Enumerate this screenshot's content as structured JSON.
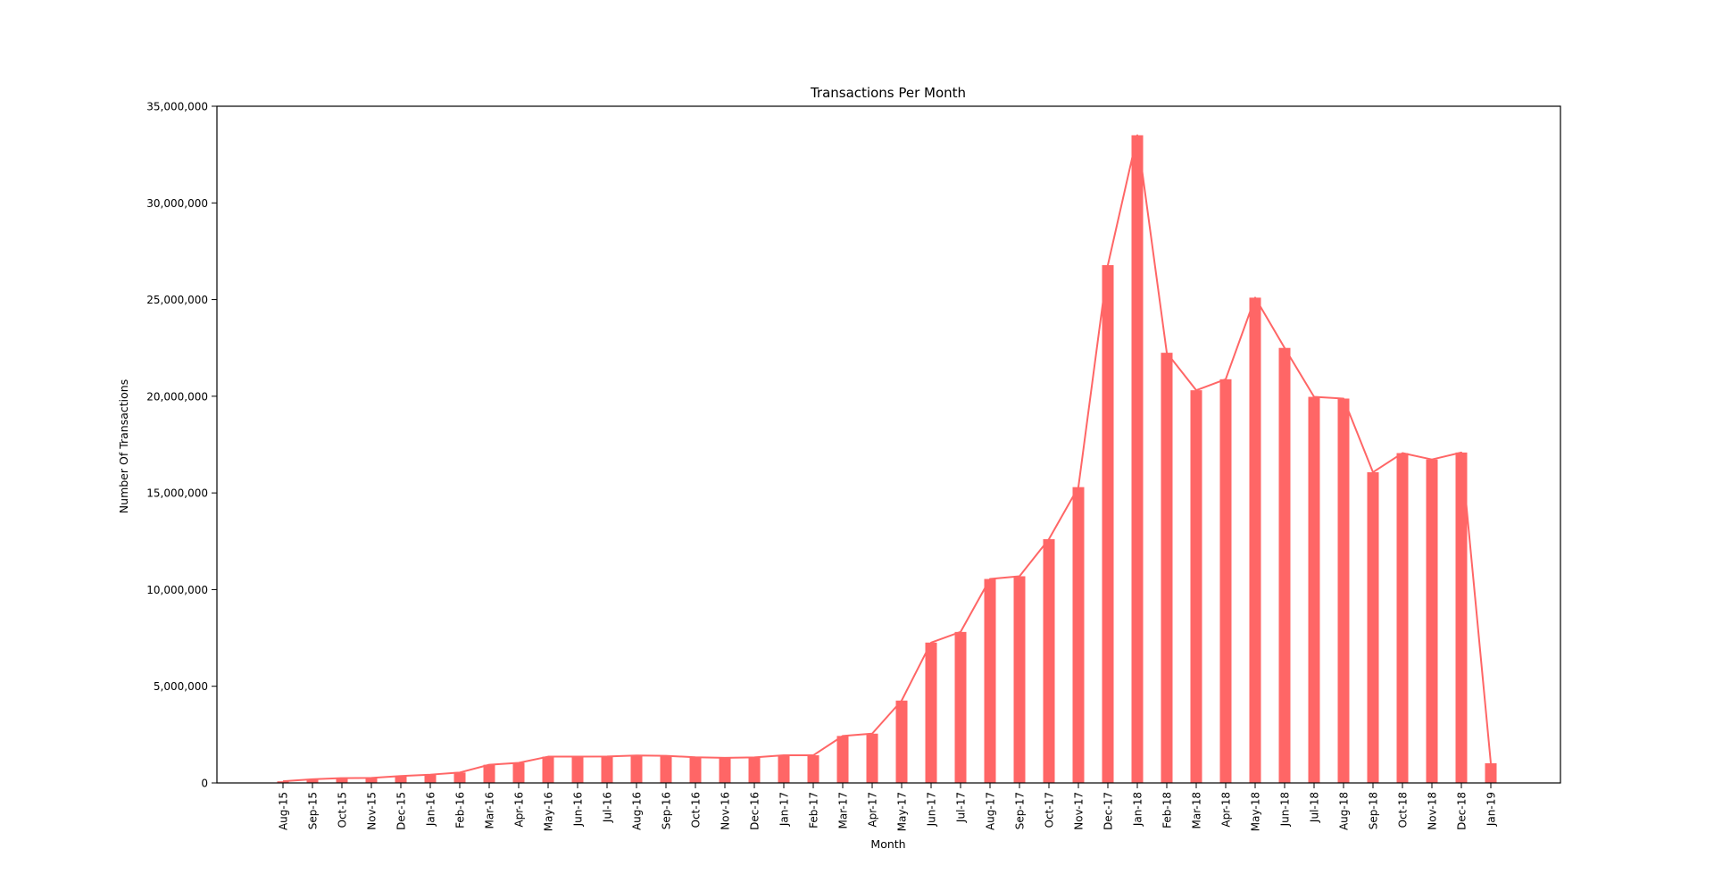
{
  "chart_data": {
    "type": "bar",
    "title": "Transactions Per Month",
    "xlabel": "Month",
    "ylabel": "Number Of Transactions",
    "ylim": [
      0,
      35000000
    ],
    "yticks": [
      0,
      5000000,
      10000000,
      15000000,
      20000000,
      25000000,
      30000000,
      35000000
    ],
    "ytick_labels": [
      "0",
      "5,000,000",
      "10,000,000",
      "15,000,000",
      "20,000,000",
      "25,000,000",
      "30,000,000",
      "35,000,000"
    ],
    "grid": false,
    "overlay": "line",
    "colors": {
      "bar": "#ff6666",
      "line": "#ff6666"
    },
    "categories": [
      "Aug-15",
      "Sep-15",
      "Oct-15",
      "Nov-15",
      "Dec-15",
      "Jan-16",
      "Feb-16",
      "Mar-16",
      "Apr-16",
      "May-16",
      "Jun-16",
      "Jul-16",
      "Aug-16",
      "Sep-16",
      "Oct-16",
      "Nov-16",
      "Dec-16",
      "Jan-17",
      "Feb-17",
      "Mar-17",
      "Apr-17",
      "May-17",
      "Jun-17",
      "Jul-17",
      "Aug-17",
      "Sep-17",
      "Oct-17",
      "Nov-17",
      "Dec-17",
      "Jan-18",
      "Feb-18",
      "Mar-18",
      "Apr-18",
      "May-18",
      "Jun-18",
      "Jul-18",
      "Aug-18",
      "Sep-18",
      "Oct-18",
      "Nov-18",
      "Dec-18",
      "Jan-19"
    ],
    "values": [
      85000,
      190000,
      250000,
      260000,
      360000,
      430000,
      540000,
      940000,
      1040000,
      1360000,
      1360000,
      1370000,
      1420000,
      1400000,
      1330000,
      1300000,
      1320000,
      1430000,
      1430000,
      2430000,
      2550000,
      4260000,
      7260000,
      7810000,
      10550000,
      10690000,
      12610000,
      15300000,
      26780000,
      33500000,
      22250000,
      20310000,
      20880000,
      25100000,
      22500000,
      19970000,
      19880000,
      16070000,
      17060000,
      16730000,
      17090000,
      1020000
    ]
  }
}
